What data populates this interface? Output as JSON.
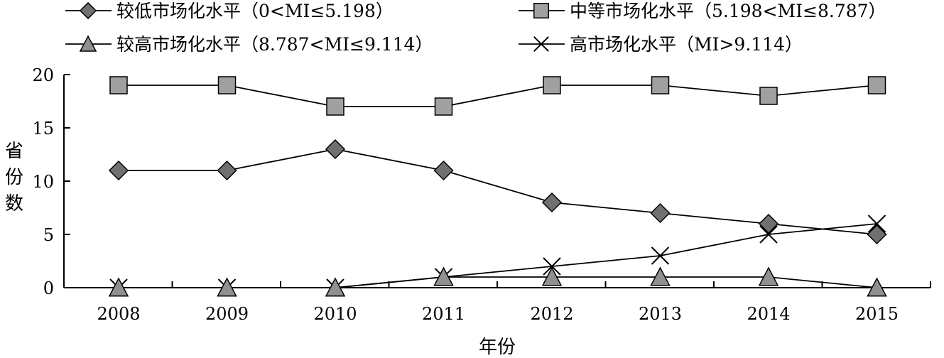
{
  "chart_data": {
    "type": "line",
    "xlabel": "年份",
    "ylabel": "省份数",
    "categories": [
      "2008",
      "2009",
      "2010",
      "2011",
      "2012",
      "2013",
      "2014",
      "2015"
    ],
    "ylim": [
      0,
      20
    ],
    "yticks": [
      "0",
      "5",
      "10",
      "15",
      "20"
    ],
    "grid": false,
    "legend_position": "top",
    "series": [
      {
        "name": "较低市场化水平（0<MI≤5.198）",
        "marker": "diamond",
        "color": "#707070",
        "values": [
          11,
          11,
          13,
          11,
          8,
          7,
          6,
          5
        ]
      },
      {
        "name": "中等市场化水平（5.198<MI≤8.787）",
        "marker": "square",
        "color": "#a0a0a0",
        "values": [
          19,
          19,
          17,
          17,
          19,
          19,
          18,
          19
        ]
      },
      {
        "name": "较高市场化水平（8.787<MI≤9.114）",
        "marker": "triangle",
        "color": "#909090",
        "values": [
          0,
          0,
          0,
          1,
          1,
          1,
          1,
          0
        ]
      },
      {
        "name": "高市场化水平（MI>9.114）",
        "marker": "x",
        "color": "#000000",
        "values": [
          0,
          0,
          0,
          1,
          2,
          3,
          5,
          6
        ]
      }
    ]
  }
}
